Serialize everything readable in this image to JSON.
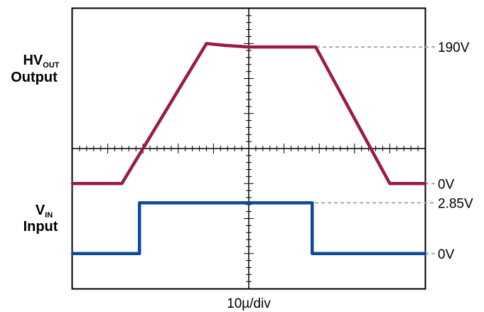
{
  "chart_data": {
    "type": "line",
    "x_label": "10µ/div",
    "x_range_div": [
      -5,
      5
    ],
    "y_range_div": [
      -4,
      4
    ],
    "grid": "center crosshair with minor ticks",
    "channels": [
      {
        "label_main": "HV",
        "label_sub": "OUT",
        "label_line2": "Output",
        "color": "#9b1b42",
        "levels": [
          {
            "text": "190V",
            "div": 2.9
          },
          {
            "text": "0V",
            "div": -1.0
          }
        ],
        "x": [
          -5.0,
          -3.6,
          -1.2,
          -0.7,
          0.0,
          1.9,
          4.0,
          5.0
        ],
        "y": [
          -1.0,
          -1.0,
          3.0,
          2.95,
          2.9,
          2.9,
          -1.0,
          -1.0
        ]
      },
      {
        "label_main": "V",
        "label_sub": "IN",
        "label_line2": "Input",
        "color": "#0b4aa0",
        "levels": [
          {
            "text": "2.85V",
            "div": -1.55
          },
          {
            "text": "0V",
            "div": -3.0
          }
        ],
        "x": [
          -5.0,
          -3.1,
          -3.1,
          1.8,
          1.8,
          5.0
        ],
        "y": [
          -3.0,
          -3.0,
          -1.55,
          -1.55,
          -3.0,
          -3.0
        ]
      }
    ]
  }
}
